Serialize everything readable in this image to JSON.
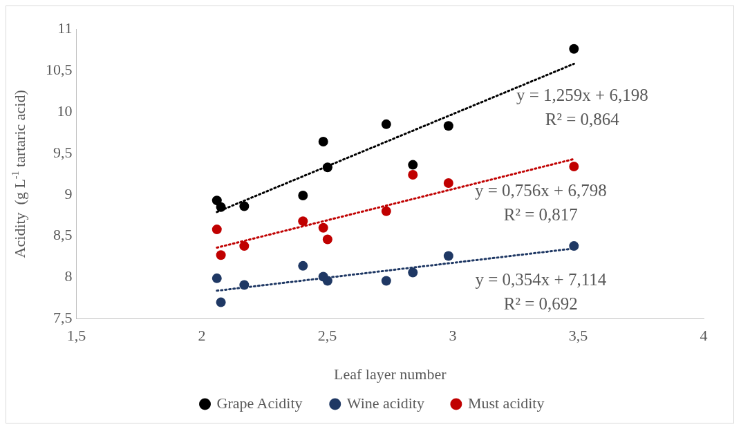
{
  "chart_data": {
    "type": "scatter",
    "xlabel": "Leaf layer number",
    "ylabel": "Acidity  (g L$^{-1}$ tartaric acid)",
    "xlim": [
      1.5,
      4
    ],
    "xticks": [
      {
        "value": 1.5,
        "label": "1,5"
      },
      2,
      {
        "value": 2.5,
        "label": "2,5"
      },
      3,
      {
        "value": 3.5,
        "label": "3,5"
      },
      4
    ],
    "ylim": [
      7.5,
      11
    ],
    "yticks": [
      {
        "value": 7.5,
        "label": "7,5"
      },
      8,
      {
        "value": 8.5,
        "label": "8,5"
      },
      9,
      {
        "value": 9.5,
        "label": "9,5"
      },
      10,
      {
        "value": 10.5,
        "label": "10,5"
      },
      11
    ],
    "grid": false,
    "legend": "bottom",
    "marker": "circle",
    "series": [
      {
        "name": "Grape Acidity",
        "color": "#000000",
        "x": [
          2.06,
          2.076,
          2.169,
          2.403,
          2.484,
          2.501,
          2.735,
          2.841,
          2.983,
          3.483
        ],
        "values": [
          8.93,
          8.85,
          8.86,
          8.99,
          9.64,
          9.33,
          9.85,
          9.36,
          9.83,
          10.76
        ]
      },
      {
        "name": "Wine acidity",
        "color": "#1f3864",
        "x": [
          2.06,
          2.076,
          2.169,
          2.403,
          2.484,
          2.501,
          2.735,
          2.841,
          2.983,
          3.483
        ],
        "values": [
          7.99,
          7.7,
          7.91,
          8.14,
          8.01,
          7.96,
          7.96,
          8.06,
          8.26,
          8.38
        ]
      },
      {
        "name": "Must acidity",
        "color": "#c00000",
        "x": [
          2.06,
          2.076,
          2.169,
          2.403,
          2.484,
          2.501,
          2.735,
          2.841,
          2.983,
          3.483
        ],
        "values": [
          8.58,
          8.27,
          8.38,
          8.68,
          8.6,
          8.46,
          8.8,
          9.24,
          9.14,
          9.34
        ]
      },
      {
        "type": "line",
        "color": "#000000",
        "line_style": "dotted",
        "marker": "none",
        "x": [
          2.06,
          3.483
        ],
        "values": [
          8.79,
          10.58
        ]
      },
      {
        "type": "line",
        "color": "#c00000",
        "line_style": "dotted",
        "marker": "none",
        "x": [
          2.06,
          3.483
        ],
        "values": [
          8.36,
          9.43
        ]
      },
      {
        "type": "line",
        "color": "#1f3864",
        "line_style": "dotted",
        "marker": "none",
        "x": [
          2.06,
          3.483
        ],
        "values": [
          7.84,
          8.35
        ]
      }
    ],
    "annotations": [
      "y = 1,259x + 6,198",
      "R² = 0,864",
      "y = 0,756x + 6,798",
      "R² = 0,817",
      "y = 0,354x + 7,114",
      "R² = 0,692"
    ]
  }
}
